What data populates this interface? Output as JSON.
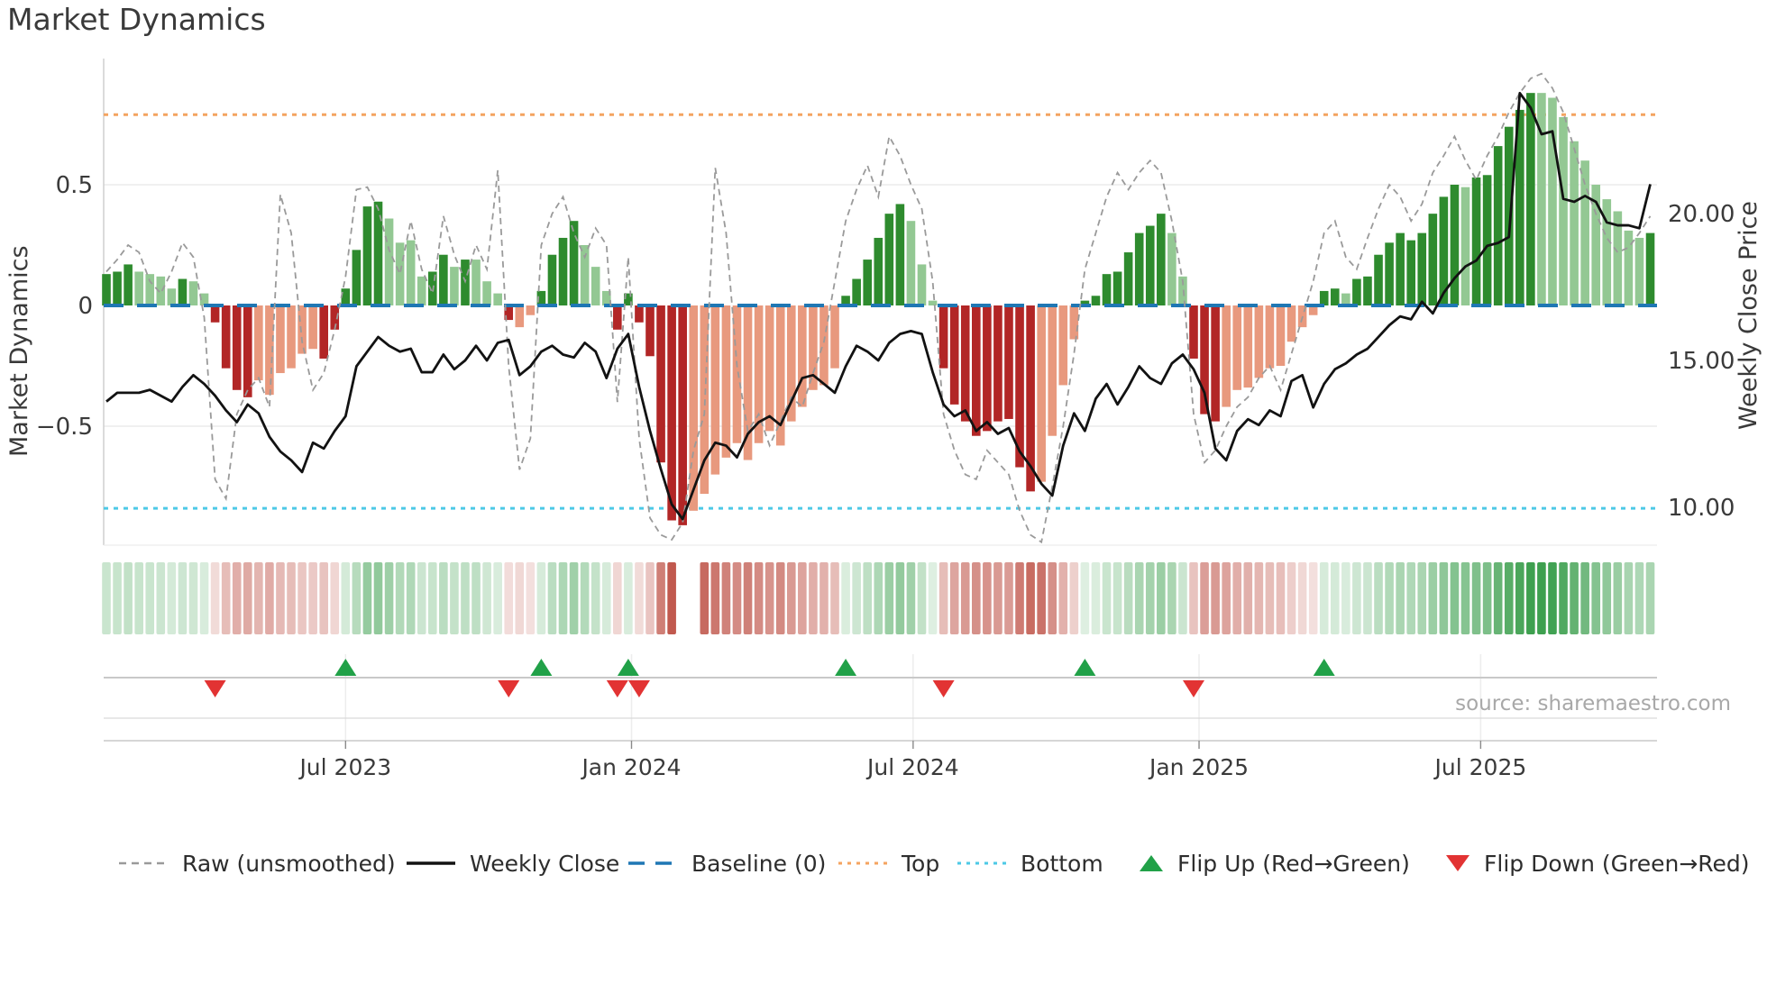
{
  "title": "Market Dynamics",
  "source_text": "source: sharemaestro.com",
  "axes": {
    "left_label": "Market Dynamics",
    "right_label": "Weekly Close Price",
    "left_ticks": [
      "0.5",
      "0",
      "−0.5"
    ],
    "right_ticks": [
      "20.00",
      "15.00",
      "10.00"
    ],
    "x_ticks": [
      "Jul 2023",
      "Jan 2024",
      "Jul 2024",
      "Jan 2025",
      "Jul 2025"
    ]
  },
  "colors": {
    "bar_dark_green": "#2e8b2e",
    "bar_light_green": "#93c893",
    "bar_dark_red": "#b22626",
    "bar_light_red": "#e8997e",
    "baseline_blue": "#1f77b4",
    "top_orange": "#f4a460",
    "bottom_cyan": "#4dc9e6",
    "raw_gray": "#9a9a9a",
    "close_black": "#121212",
    "flip_up_green": "#21a148",
    "flip_down_red": "#e23333",
    "grid": "#ececec",
    "spine": "#cfcfcf",
    "band_line": "#c9c9c9",
    "heat_green_base": [
      58,
      158,
      76
    ],
    "heat_red_base": [
      192,
      87,
      76
    ]
  },
  "legend": {
    "items": [
      {
        "label": "Raw (unsmoothed)",
        "type": "dashed-line",
        "color": "#9a9a9a"
      },
      {
        "label": "Weekly Close",
        "type": "solid-line",
        "color": "#121212"
      },
      {
        "label": "Baseline (0)",
        "type": "long-dash",
        "color": "#1f77b4"
      },
      {
        "label": "Top",
        "type": "dotted",
        "color": "#f4a460"
      },
      {
        "label": "Bottom",
        "type": "dotted",
        "color": "#4dc9e6"
      },
      {
        "label": "Flip Up (Red→Green)",
        "type": "triangle-up",
        "color": "#21a148"
      },
      {
        "label": "Flip Down (Green→Red)",
        "type": "triangle-down",
        "color": "#e23333"
      }
    ]
  },
  "chart_data": {
    "type": "bar",
    "title": "Market Dynamics",
    "ylabel_left": "Market Dynamics",
    "ylabel_right": "Weekly Close Price",
    "ylim_left": [
      -1.0,
      1.02
    ],
    "ylim_right": [
      8.7,
      25.3
    ],
    "left_yticks": [
      0.5,
      0,
      -0.5
    ],
    "right_yticks": [
      20,
      15,
      10
    ],
    "x_tick_labels": [
      "Jul 2023",
      "Jan 2024",
      "Jul 2024",
      "Jan 2025",
      "Jul 2025"
    ],
    "x_tick_positions": [
      22.0,
      48.3,
      74.2,
      100.5,
      126.4
    ],
    "baseline": 0,
    "top_threshold": 0.79,
    "bottom_threshold": -0.84,
    "grid": "horizontal",
    "legend_position": "bottom",
    "series": [
      {
        "name": "Market Dynamics bars",
        "type": "bar",
        "values": [
          0.13,
          0.14,
          0.17,
          0.14,
          0.13,
          0.12,
          0.07,
          0.11,
          0.1,
          0.05,
          -0.07,
          -0.26,
          -0.35,
          -0.38,
          -0.31,
          -0.37,
          -0.28,
          -0.26,
          -0.2,
          -0.18,
          -0.22,
          -0.1,
          0.07,
          0.23,
          0.41,
          0.43,
          0.36,
          0.26,
          0.27,
          0.12,
          0.14,
          0.21,
          0.16,
          0.19,
          0.19,
          0.1,
          0.05,
          -0.06,
          -0.09,
          -0.04,
          0.06,
          0.21,
          0.28,
          0.35,
          0.25,
          0.16,
          0.06,
          -0.1,
          0.05,
          -0.07,
          -0.21,
          -0.65,
          -0.89,
          -0.91,
          -0.85,
          -0.78,
          -0.7,
          -0.63,
          -0.57,
          -0.64,
          -0.57,
          -0.52,
          -0.58,
          -0.48,
          -0.42,
          -0.35,
          -0.33,
          -0.26,
          0.04,
          0.11,
          0.19,
          0.28,
          0.38,
          0.42,
          0.35,
          0.17,
          0.02,
          -0.26,
          -0.41,
          -0.48,
          -0.54,
          -0.52,
          -0.48,
          -0.47,
          -0.67,
          -0.77,
          -0.73,
          -0.54,
          -0.33,
          -0.14,
          0.02,
          0.04,
          0.13,
          0.14,
          0.22,
          0.3,
          0.33,
          0.38,
          0.3,
          0.12,
          -0.22,
          -0.45,
          -0.48,
          -0.42,
          -0.35,
          -0.34,
          -0.3,
          -0.26,
          -0.25,
          -0.15,
          -0.09,
          -0.04,
          0.06,
          0.07,
          0.05,
          0.11,
          0.12,
          0.21,
          0.26,
          0.3,
          0.27,
          0.3,
          0.38,
          0.45,
          0.5,
          0.49,
          0.53,
          0.54,
          0.66,
          0.74,
          0.81,
          0.88,
          0.88,
          0.86,
          0.78,
          0.68,
          0.6,
          0.5,
          0.44,
          0.39,
          0.31,
          0.28,
          0.3
        ],
        "shades": [
          "d",
          "d",
          "d",
          "l",
          "l",
          "l",
          "l",
          "d",
          "l",
          "l",
          "d",
          "d",
          "d",
          "d",
          "l",
          "l",
          "l",
          "l",
          "l",
          "l",
          "d",
          "d",
          "d",
          "d",
          "d",
          "d",
          "l",
          "l",
          "l",
          "l",
          "d",
          "d",
          "l",
          "d",
          "l",
          "l",
          "l",
          "d",
          "l",
          "l",
          "d",
          "d",
          "d",
          "d",
          "l",
          "l",
          "l",
          "d",
          "d",
          "d",
          "d",
          "d",
          "d",
          "d",
          "l",
          "l",
          "l",
          "l",
          "l",
          "l",
          "l",
          "l",
          "l",
          "l",
          "l",
          "l",
          "l",
          "l",
          "d",
          "d",
          "d",
          "d",
          "d",
          "d",
          "l",
          "l",
          "l",
          "d",
          "d",
          "d",
          "d",
          "d",
          "d",
          "d",
          "d",
          "d",
          "l",
          "l",
          "l",
          "l",
          "d",
          "d",
          "d",
          "d",
          "d",
          "d",
          "d",
          "d",
          "l",
          "l",
          "d",
          "d",
          "d",
          "l",
          "l",
          "l",
          "l",
          "l",
          "l",
          "l",
          "l",
          "l",
          "d",
          "d",
          "l",
          "d",
          "d",
          "d",
          "d",
          "d",
          "d",
          "d",
          "d",
          "d",
          "d",
          "l",
          "d",
          "d",
          "d",
          "d",
          "d",
          "d",
          "l",
          "l",
          "l",
          "l",
          "l",
          "l",
          "l",
          "l",
          "l",
          "l",
          "d"
        ]
      },
      {
        "name": "Raw (unsmoothed)",
        "type": "line",
        "axis": "left",
        "values": [
          0.14,
          0.19,
          0.25,
          0.22,
          0.1,
          0.05,
          0.14,
          0.26,
          0.2,
          -0.05,
          -0.72,
          -0.8,
          -0.45,
          -0.35,
          -0.3,
          -0.42,
          0.46,
          0.3,
          -0.15,
          -0.35,
          -0.28,
          -0.1,
          0.12,
          0.48,
          0.49,
          0.4,
          0.23,
          0.13,
          0.35,
          0.15,
          0.05,
          0.37,
          0.21,
          0.1,
          0.25,
          0.15,
          0.56,
          -0.25,
          -0.68,
          -0.55,
          0.25,
          0.38,
          0.45,
          0.3,
          0.2,
          0.32,
          0.25,
          -0.4,
          0.2,
          -0.55,
          -0.88,
          -0.95,
          -0.97,
          -0.9,
          -0.6,
          -0.45,
          0.57,
          0.3,
          -0.25,
          -0.52,
          -0.45,
          -0.58,
          -0.48,
          -0.38,
          -0.42,
          -0.28,
          -0.15,
          0.1,
          0.35,
          0.48,
          0.58,
          0.45,
          0.7,
          0.62,
          0.5,
          0.4,
          0.1,
          -0.45,
          -0.6,
          -0.7,
          -0.72,
          -0.6,
          -0.65,
          -0.7,
          -0.85,
          -0.95,
          -0.98,
          -0.75,
          -0.5,
          -0.2,
          0.15,
          0.3,
          0.45,
          0.55,
          0.48,
          0.55,
          0.6,
          0.55,
          0.35,
          0.1,
          -0.45,
          -0.65,
          -0.6,
          -0.5,
          -0.42,
          -0.38,
          -0.3,
          -0.25,
          -0.35,
          -0.2,
          -0.05,
          0.1,
          0.3,
          0.35,
          0.2,
          0.15,
          0.28,
          0.4,
          0.5,
          0.45,
          0.35,
          0.42,
          0.55,
          0.62,
          0.7,
          0.6,
          0.52,
          0.62,
          0.7,
          0.8,
          0.88,
          0.94,
          0.96,
          0.9,
          0.8,
          0.65,
          0.5,
          0.38,
          0.28,
          0.22,
          0.24,
          0.3,
          0.37
        ]
      },
      {
        "name": "Weekly Close",
        "type": "line",
        "axis": "right",
        "values": [
          13.6,
          13.9,
          13.9,
          13.9,
          14.0,
          13.8,
          13.6,
          14.1,
          14.5,
          14.2,
          13.8,
          13.3,
          12.9,
          13.5,
          13.2,
          12.4,
          11.9,
          11.6,
          11.2,
          12.2,
          12.0,
          12.6,
          13.1,
          14.8,
          15.3,
          15.8,
          15.5,
          15.3,
          15.4,
          14.6,
          14.6,
          15.2,
          14.7,
          15.0,
          15.5,
          15.0,
          15.6,
          15.7,
          14.5,
          14.8,
          15.3,
          15.5,
          15.2,
          15.1,
          15.6,
          15.3,
          14.4,
          15.4,
          15.9,
          14.1,
          12.6,
          11.3,
          10.1,
          9.6,
          10.6,
          11.6,
          12.2,
          12.1,
          11.7,
          12.5,
          12.9,
          13.1,
          12.8,
          13.6,
          14.4,
          14.5,
          14.2,
          13.9,
          14.8,
          15.5,
          15.3,
          15.0,
          15.6,
          15.9,
          16.0,
          15.9,
          14.6,
          13.5,
          13.1,
          13.3,
          12.6,
          12.9,
          12.5,
          12.7,
          11.9,
          11.4,
          10.8,
          10.4,
          12.1,
          13.2,
          12.6,
          13.7,
          14.2,
          13.5,
          14.1,
          14.8,
          14.4,
          14.2,
          14.9,
          15.2,
          14.7,
          13.9,
          12.0,
          11.6,
          12.6,
          13.0,
          12.8,
          13.3,
          13.1,
          14.3,
          14.5,
          13.4,
          14.2,
          14.7,
          14.9,
          15.2,
          15.4,
          15.8,
          16.2,
          16.5,
          16.4,
          17.0,
          16.6,
          17.3,
          17.8,
          18.2,
          18.4,
          18.9,
          19.0,
          19.2,
          24.1,
          23.6,
          22.7,
          22.8,
          20.5,
          20.4,
          20.6,
          20.4,
          19.7,
          19.6,
          19.6,
          19.5,
          21.0
        ]
      }
    ],
    "heatmap_gap_indices": [
      53,
      54
    ],
    "flip_up_indices": [
      22,
      40,
      48,
      68,
      90,
      112
    ],
    "flip_down_indices": [
      10,
      37,
      47,
      49,
      77,
      100
    ]
  }
}
